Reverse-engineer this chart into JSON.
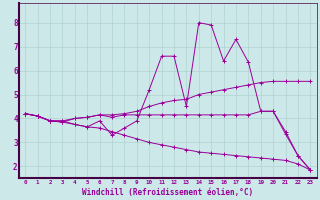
{
  "xlabel": "Windchill (Refroidissement éolien,°C)",
  "xlim": [
    -0.5,
    23.5
  ],
  "ylim": [
    1.5,
    8.8
  ],
  "background_color": "#cde8e8",
  "line_color": "#990099",
  "xticks": [
    0,
    1,
    2,
    3,
    4,
    5,
    6,
    7,
    8,
    9,
    10,
    11,
    12,
    13,
    14,
    15,
    16,
    17,
    18,
    19,
    20,
    21,
    22,
    23
  ],
  "yticks": [
    2,
    3,
    4,
    5,
    6,
    7,
    8
  ],
  "series1_x": [
    0,
    1,
    2,
    3,
    4,
    5,
    6,
    7,
    8,
    9,
    10,
    11,
    12,
    13,
    14,
    15,
    16,
    17,
    18,
    19,
    20,
    21,
    22,
    23
  ],
  "series1_y": [
    4.2,
    4.1,
    3.9,
    3.9,
    3.75,
    3.65,
    3.9,
    3.3,
    3.6,
    3.9,
    5.2,
    6.6,
    6.6,
    4.5,
    8.0,
    7.9,
    6.4,
    7.3,
    6.35,
    4.3,
    4.3,
    3.35,
    2.45,
    1.85
  ],
  "series2_x": [
    0,
    1,
    2,
    3,
    4,
    5,
    6,
    7,
    8,
    9,
    10,
    11,
    12,
    13,
    14,
    15,
    16,
    17,
    18,
    19,
    20,
    21,
    22,
    23
  ],
  "series2_y": [
    4.2,
    4.1,
    3.9,
    3.9,
    4.0,
    4.05,
    4.15,
    4.15,
    4.2,
    4.3,
    4.5,
    4.65,
    4.75,
    4.8,
    5.0,
    5.1,
    5.2,
    5.3,
    5.4,
    5.5,
    5.55,
    5.55,
    5.55,
    5.55
  ],
  "series3_x": [
    0,
    1,
    2,
    3,
    4,
    5,
    6,
    7,
    8,
    9,
    10,
    11,
    12,
    13,
    14,
    15,
    16,
    17,
    18,
    19,
    20,
    21,
    22,
    23
  ],
  "series3_y": [
    4.2,
    4.1,
    3.9,
    3.85,
    4.0,
    4.05,
    4.15,
    4.05,
    4.15,
    4.15,
    4.15,
    4.15,
    4.15,
    4.15,
    4.15,
    4.15,
    4.15,
    4.15,
    4.15,
    4.3,
    4.3,
    3.45,
    2.45,
    1.85
  ],
  "series4_x": [
    0,
    1,
    2,
    3,
    4,
    5,
    6,
    7,
    8,
    9,
    10,
    11,
    12,
    13,
    14,
    15,
    16,
    17,
    18,
    19,
    20,
    21,
    22,
    23
  ],
  "series4_y": [
    4.2,
    4.1,
    3.9,
    3.85,
    3.75,
    3.65,
    3.6,
    3.45,
    3.3,
    3.15,
    3.0,
    2.9,
    2.8,
    2.7,
    2.6,
    2.55,
    2.5,
    2.45,
    2.4,
    2.35,
    2.3,
    2.25,
    2.1,
    1.85
  ]
}
